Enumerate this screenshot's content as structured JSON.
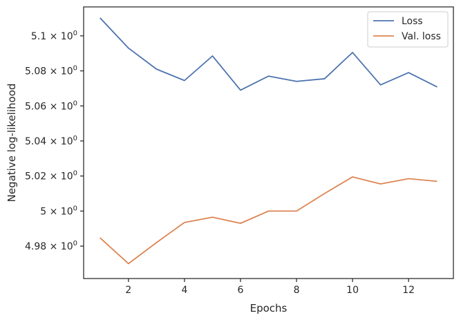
{
  "chart_data": {
    "type": "line",
    "title": "",
    "xlabel": "Epochs",
    "ylabel": "Negative log-likelihood",
    "xlim": [
      0.4,
      13.6
    ],
    "ylim": [
      4.9615,
      5.1165
    ],
    "x_ticks": [
      2,
      4,
      6,
      8,
      10,
      12
    ],
    "x_tick_labels": [
      "2",
      "4",
      "6",
      "8",
      "10",
      "12"
    ],
    "y_ticks": [
      {
        "value": 4.98,
        "mantissa": "4.98",
        "exponent": "0"
      },
      {
        "value": 5.0,
        "mantissa": "5",
        "exponent": "0"
      },
      {
        "value": 5.02,
        "mantissa": "5.02",
        "exponent": "0"
      },
      {
        "value": 5.04,
        "mantissa": "5.04",
        "exponent": "0"
      },
      {
        "value": 5.06,
        "mantissa": "5.06",
        "exponent": "0"
      },
      {
        "value": 5.08,
        "mantissa": "5.08",
        "exponent": "0"
      },
      {
        "value": 5.1,
        "mantissa": "5.1",
        "exponent": "0"
      }
    ],
    "tick_times_symbol": "×",
    "tick_base": "10",
    "grid": false,
    "legend_position": "top-right",
    "x": [
      1,
      2,
      3,
      4,
      5,
      6,
      7,
      8,
      9,
      10,
      11,
      12,
      13
    ],
    "series": [
      {
        "name": "Loss",
        "color": "#4c72b0",
        "values": [
          5.11,
          5.093,
          5.081,
          5.0745,
          5.0885,
          5.069,
          5.077,
          5.074,
          5.0755,
          5.0905,
          5.072,
          5.079,
          5.071
        ]
      },
      {
        "name": "Val. loss",
        "color": "#dd8452",
        "values": [
          4.9845,
          4.97,
          4.982,
          4.9935,
          4.9965,
          4.993,
          5.0,
          5.0,
          5.01,
          5.0195,
          5.0155,
          5.0185,
          5.017
        ]
      }
    ]
  }
}
